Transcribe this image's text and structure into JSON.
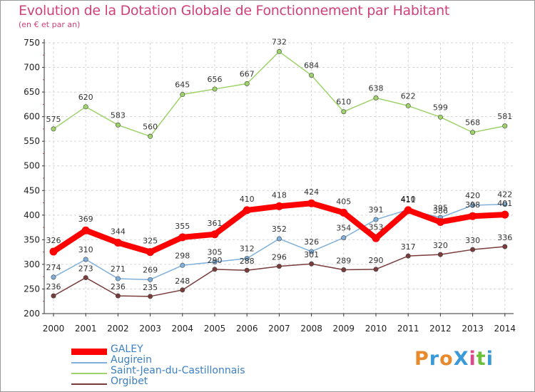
{
  "header": {
    "title": "Evolution de la Dotation Globale de Fonctionnement par Habitant",
    "subtitle": "(en € et par an)"
  },
  "logo": {
    "text": "ProXiti",
    "colors": [
      "#e8892b",
      "#3a9ad9",
      "#e8892b",
      "#3a9ad9",
      "#d94b8c",
      "#6cbf3b",
      "#3a9ad9"
    ]
  },
  "chart_data": {
    "type": "line",
    "title": "Evolution de la Dotation Globale de Fonctionnement par Habitant",
    "subtitle": "(en € et par an)",
    "xlabel": "",
    "ylabel": "",
    "x": [
      "2000",
      "2001",
      "2002",
      "2003",
      "2004",
      "2005",
      "2006",
      "2007",
      "2008",
      "2009",
      "2010",
      "2011",
      "2012",
      "2013",
      "2014"
    ],
    "ylim": [
      200,
      750
    ],
    "yticks": [
      200,
      250,
      300,
      350,
      400,
      450,
      500,
      550,
      600,
      650,
      700,
      750
    ],
    "grid": true,
    "legend": "bottom-left",
    "series": [
      {
        "name": "GALEY",
        "color": "#ff0000",
        "emphasis": true,
        "values": [
          326,
          369,
          344,
          325,
          355,
          361,
          410,
          418,
          424,
          405,
          353,
          410,
          386,
          398,
          401
        ]
      },
      {
        "name": "Augirein",
        "color": "#7fb0dc",
        "emphasis": false,
        "values": [
          274,
          310,
          271,
          269,
          298,
          305,
          312,
          352,
          326,
          354,
          391,
          411,
          395,
          420,
          422
        ]
      },
      {
        "name": "Saint-Jean-du-Castillonnais",
        "color": "#9ed26a",
        "emphasis": false,
        "values": [
          575,
          620,
          583,
          560,
          645,
          656,
          667,
          732,
          684,
          610,
          638,
          622,
          599,
          568,
          581
        ]
      },
      {
        "name": "Orgibet",
        "color": "#7a3b3b",
        "emphasis": false,
        "values": [
          236,
          273,
          236,
          235,
          248,
          290,
          288,
          296,
          301,
          289,
          290,
          317,
          320,
          330,
          336
        ]
      }
    ]
  }
}
